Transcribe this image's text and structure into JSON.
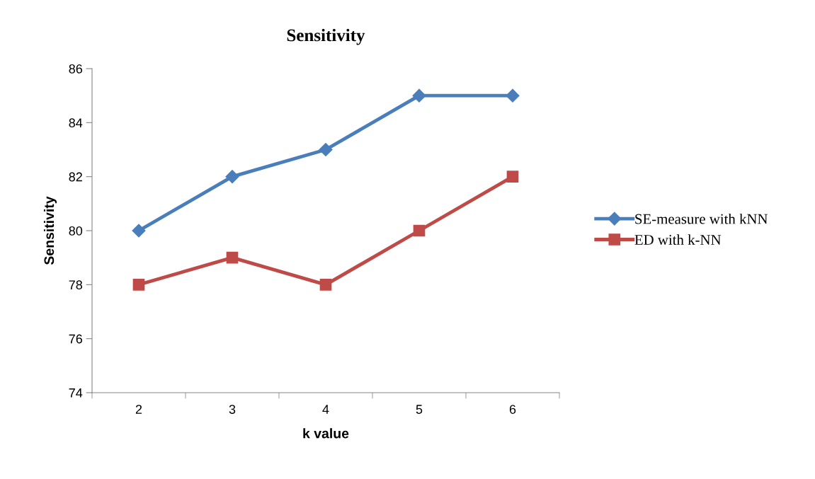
{
  "chart_data": {
    "type": "line",
    "title": "Sensitivity",
    "xlabel": "k value",
    "ylabel": "Sensitivity",
    "categories": [
      "2",
      "3",
      "4",
      "5",
      "6"
    ],
    "series": [
      {
        "name": "SE-measure with kNN",
        "color": "#4a7ebb",
        "marker": "diamond",
        "values": [
          80,
          82,
          83,
          85,
          85
        ]
      },
      {
        "name": "ED with k-NN",
        "color": "#be4b48",
        "marker": "square",
        "values": [
          78,
          79,
          78,
          80,
          82
        ]
      }
    ],
    "ylim": [
      74,
      86
    ],
    "yticks": [
      74,
      76,
      78,
      80,
      82,
      84,
      86
    ],
    "grid": false,
    "legend": "right",
    "line_style": "solid"
  }
}
